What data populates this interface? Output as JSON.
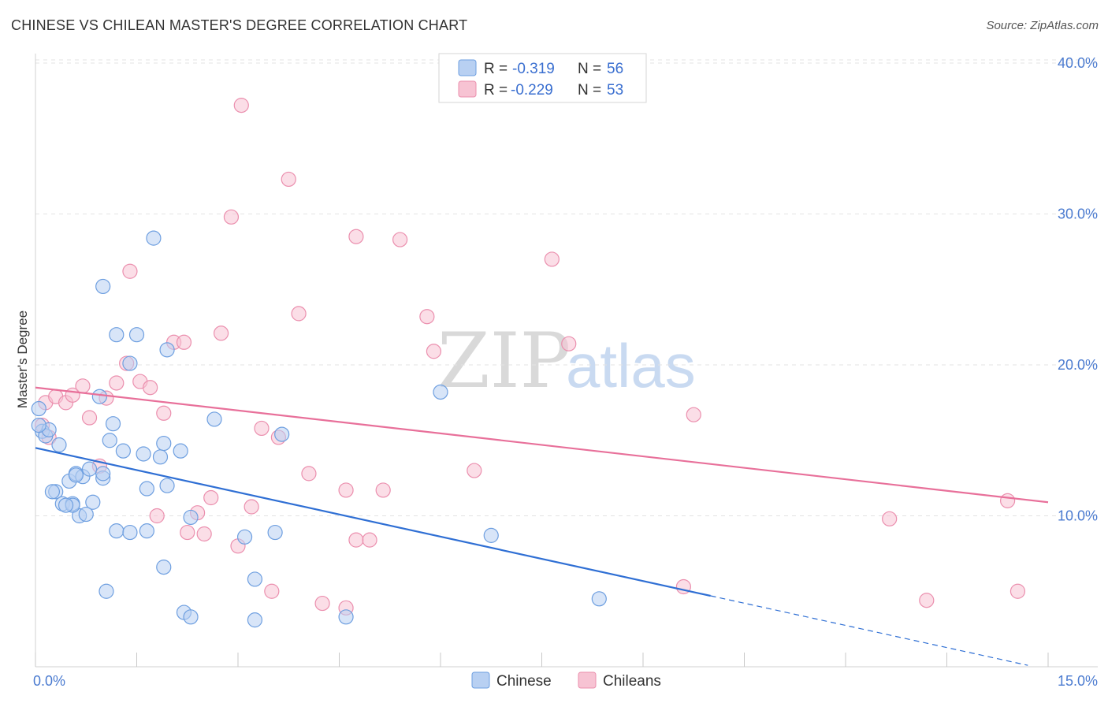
{
  "title": "CHINESE VS CHILEAN MASTER'S DEGREE CORRELATION CHART",
  "source": "Source: ZipAtlas.com",
  "watermark": {
    "zip": "ZIP",
    "atlas": "atlas"
  },
  "colors": {
    "chinese_fill": "#b8d0f2",
    "chinese_stroke": "#6e9fe0",
    "chinese_line": "#2f6fd4",
    "chileans_fill": "#f7c3d3",
    "chileans_stroke": "#eb8fae",
    "chileans_line": "#e8709a",
    "tick": "#4b7bd0"
  },
  "legend": {
    "rows": [
      {
        "r_label": "R =",
        "r_value": "-0.319",
        "n_label": "N =",
        "n_value": "56"
      },
      {
        "r_label": "R =",
        "r_value": "-0.229",
        "n_label": "N =",
        "n_value": "53"
      }
    ]
  },
  "chart_data": {
    "type": "scatter",
    "title": "CHINESE VS CHILEAN MASTER'S DEGREE CORRELATION CHART",
    "xlabel": "",
    "ylabel": "Master's Degree",
    "xlim": [
      0,
      15
    ],
    "ylim": [
      0,
      40
    ],
    "x_tick_labels": [
      "0.0%",
      "15.0%"
    ],
    "y_ticks": [
      10,
      20,
      30,
      40
    ],
    "y_tick_labels": [
      "10.0%",
      "20.0%",
      "30.0%",
      "40.0%"
    ],
    "grid": true,
    "legend_position": "top-center",
    "series": [
      {
        "name": "Chinese",
        "r": -0.319,
        "n": 56,
        "trend": {
          "x0": 0,
          "y0": 14.5,
          "x1": 10.0,
          "y1": 4.7,
          "dash_to_x": 14.7
        },
        "points": [
          [
            0.05,
            17.1
          ],
          [
            0.1,
            15.6
          ],
          [
            0.15,
            15.3
          ],
          [
            0.2,
            15.7
          ],
          [
            0.35,
            14.7
          ],
          [
            0.05,
            16.0
          ],
          [
            0.5,
            12.3
          ],
          [
            0.6,
            12.8
          ],
          [
            0.7,
            12.6
          ],
          [
            0.8,
            13.1
          ],
          [
            1.0,
            12.5
          ],
          [
            0.3,
            11.6
          ],
          [
            0.4,
            10.8
          ],
          [
            0.55,
            10.8
          ],
          [
            0.85,
            10.9
          ],
          [
            0.65,
            10.0
          ],
          [
            0.75,
            10.1
          ],
          [
            1.1,
            15.0
          ],
          [
            1.15,
            16.1
          ],
          [
            1.3,
            14.3
          ],
          [
            1.6,
            14.1
          ],
          [
            1.85,
            13.9
          ],
          [
            1.9,
            14.8
          ],
          [
            2.15,
            14.3
          ],
          [
            1.65,
            11.8
          ],
          [
            1.95,
            12.0
          ],
          [
            1.2,
            9.0
          ],
          [
            1.4,
            8.9
          ],
          [
            1.65,
            9.0
          ],
          [
            2.3,
            9.9
          ],
          [
            2.65,
            16.4
          ],
          [
            3.1,
            8.6
          ],
          [
            3.55,
            8.9
          ],
          [
            3.65,
            15.4
          ],
          [
            6.0,
            18.2
          ],
          [
            6.75,
            8.7
          ],
          [
            0.95,
            17.9
          ],
          [
            1.4,
            20.1
          ],
          [
            1.2,
            22.0
          ],
          [
            1.5,
            22.0
          ],
          [
            1.95,
            21.0
          ],
          [
            1.0,
            25.2
          ],
          [
            1.75,
            28.4
          ],
          [
            1.05,
            5.0
          ],
          [
            1.9,
            6.6
          ],
          [
            2.2,
            3.6
          ],
          [
            2.3,
            3.3
          ],
          [
            3.25,
            5.8
          ],
          [
            3.25,
            3.1
          ],
          [
            4.6,
            3.3
          ],
          [
            8.35,
            4.5
          ],
          [
            0.55,
            10.7
          ],
          [
            0.25,
            11.6
          ],
          [
            1.0,
            12.8
          ],
          [
            0.6,
            12.7
          ],
          [
            0.45,
            10.7
          ]
        ]
      },
      {
        "name": "Chileans",
        "r": -0.229,
        "n": 53,
        "trend": {
          "x0": 0,
          "y0": 18.5,
          "x1": 15.0,
          "y1": 10.9
        },
        "points": [
          [
            0.1,
            16.0
          ],
          [
            0.15,
            17.5
          ],
          [
            0.3,
            17.9
          ],
          [
            0.45,
            17.5
          ],
          [
            0.55,
            18.0
          ],
          [
            0.7,
            18.6
          ],
          [
            0.2,
            15.2
          ],
          [
            0.8,
            16.5
          ],
          [
            1.05,
            17.8
          ],
          [
            1.2,
            18.8
          ],
          [
            1.35,
            20.1
          ],
          [
            1.55,
            18.9
          ],
          [
            1.7,
            18.5
          ],
          [
            1.9,
            16.8
          ],
          [
            2.05,
            21.5
          ],
          [
            2.2,
            21.5
          ],
          [
            2.75,
            22.1
          ],
          [
            3.35,
            15.8
          ],
          [
            3.6,
            15.2
          ],
          [
            3.9,
            23.4
          ],
          [
            4.05,
            12.8
          ],
          [
            4.6,
            11.7
          ],
          [
            5.15,
            11.7
          ],
          [
            5.8,
            23.2
          ],
          [
            5.9,
            20.9
          ],
          [
            6.5,
            13.0
          ],
          [
            7.9,
            21.4
          ],
          [
            9.75,
            16.7
          ],
          [
            12.65,
            9.8
          ],
          [
            14.4,
            11.0
          ],
          [
            0.95,
            13.3
          ],
          [
            1.8,
            10.0
          ],
          [
            2.25,
            8.9
          ],
          [
            2.4,
            10.2
          ],
          [
            2.5,
            8.8
          ],
          [
            2.6,
            11.2
          ],
          [
            3.0,
            8.0
          ],
          [
            3.2,
            10.6
          ],
          [
            3.5,
            5.0
          ],
          [
            4.25,
            4.2
          ],
          [
            4.6,
            3.9
          ],
          [
            4.75,
            8.4
          ],
          [
            4.95,
            8.4
          ],
          [
            9.6,
            5.3
          ],
          [
            13.2,
            4.4
          ],
          [
            14.55,
            5.0
          ],
          [
            1.4,
            26.2
          ],
          [
            2.9,
            29.8
          ],
          [
            3.05,
            37.2
          ],
          [
            3.75,
            32.3
          ],
          [
            4.75,
            28.5
          ],
          [
            5.4,
            28.3
          ],
          [
            7.65,
            27.0
          ]
        ]
      }
    ]
  },
  "bottom_legend": {
    "chinese": "Chinese",
    "chileans": "Chileans"
  }
}
